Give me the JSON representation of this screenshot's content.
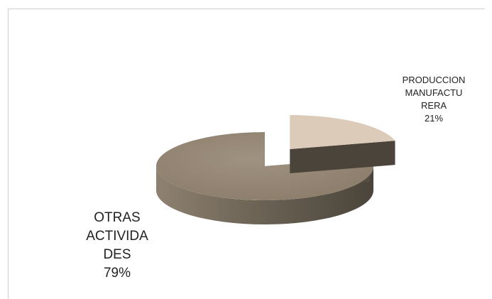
{
  "chart_data": {
    "type": "pie",
    "style": "3d-exploded",
    "title": "",
    "categories": [
      "PRODUCCION MANUFACTURERA",
      "OTRAS ACTIVIDADES"
    ],
    "values": [
      21,
      79
    ],
    "colors": {
      "slice_small_top": "#dbcbb8",
      "slice_small_side": "#5e564b",
      "slice_large_top": "#948673",
      "slice_large_side": "#5b5347"
    },
    "labels": [
      {
        "text": "PRODUCCION\nMANUFACTU\nRERA\n21%",
        "slice": 0
      },
      {
        "text": "OTRAS\nACTIVIDA\nDES\n79%",
        "slice": 1
      }
    ],
    "legend": "none"
  }
}
